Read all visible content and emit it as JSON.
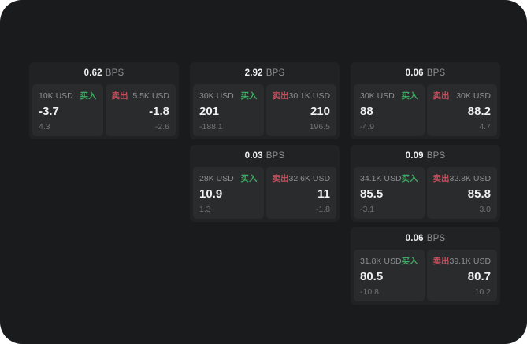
{
  "app": {
    "unit_label": "BPS",
    "buy_label": "买入",
    "sell_label": "卖出"
  },
  "colors": {
    "background": "#1a1b1c",
    "card": "#212224",
    "panel": "#2a2b2d",
    "text_primary": "#f0f1f1",
    "text_secondary": "#8b8f92",
    "text_tertiary": "#707376",
    "buy_green": "#3fa963",
    "sell_red": "#c44f5b"
  },
  "cards": [
    {
      "row": 1,
      "col": 1,
      "bps": "0.62",
      "buy": {
        "amount": "10K USD",
        "price": "-3.7",
        "change": "4.3"
      },
      "sell": {
        "amount": "5.5K USD",
        "price": "-1.8",
        "change": "-2.6"
      }
    },
    {
      "row": 1,
      "col": 2,
      "bps": "2.92",
      "buy": {
        "amount": "30K USD",
        "price": "201",
        "change": "-188.1"
      },
      "sell": {
        "amount": "30.1K USD",
        "price": "210",
        "change": "196.5"
      }
    },
    {
      "row": 1,
      "col": 3,
      "bps": "0.06",
      "buy": {
        "amount": "30K USD",
        "price": "88",
        "change": "-4.9"
      },
      "sell": {
        "amount": "30K USD",
        "price": "88.2",
        "change": "4.7"
      }
    },
    {
      "row": 2,
      "col": 2,
      "bps": "0.03",
      "buy": {
        "amount": "28K USD",
        "price": "10.9",
        "change": "1.3"
      },
      "sell": {
        "amount": "32.6K USD",
        "price": "11",
        "change": "-1.8"
      }
    },
    {
      "row": 2,
      "col": 3,
      "bps": "0.09",
      "buy": {
        "amount": "34.1K USD",
        "price": "85.5",
        "change": "-3.1"
      },
      "sell": {
        "amount": "32.8K USD",
        "price": "85.8",
        "change": "3.0"
      }
    },
    {
      "row": 3,
      "col": 3,
      "bps": "0.06",
      "buy": {
        "amount": "31.8K USD",
        "price": "80.5",
        "change": "-10.8"
      },
      "sell": {
        "amount": "39.1K USD",
        "price": "80.7",
        "change": "10.2"
      }
    }
  ]
}
